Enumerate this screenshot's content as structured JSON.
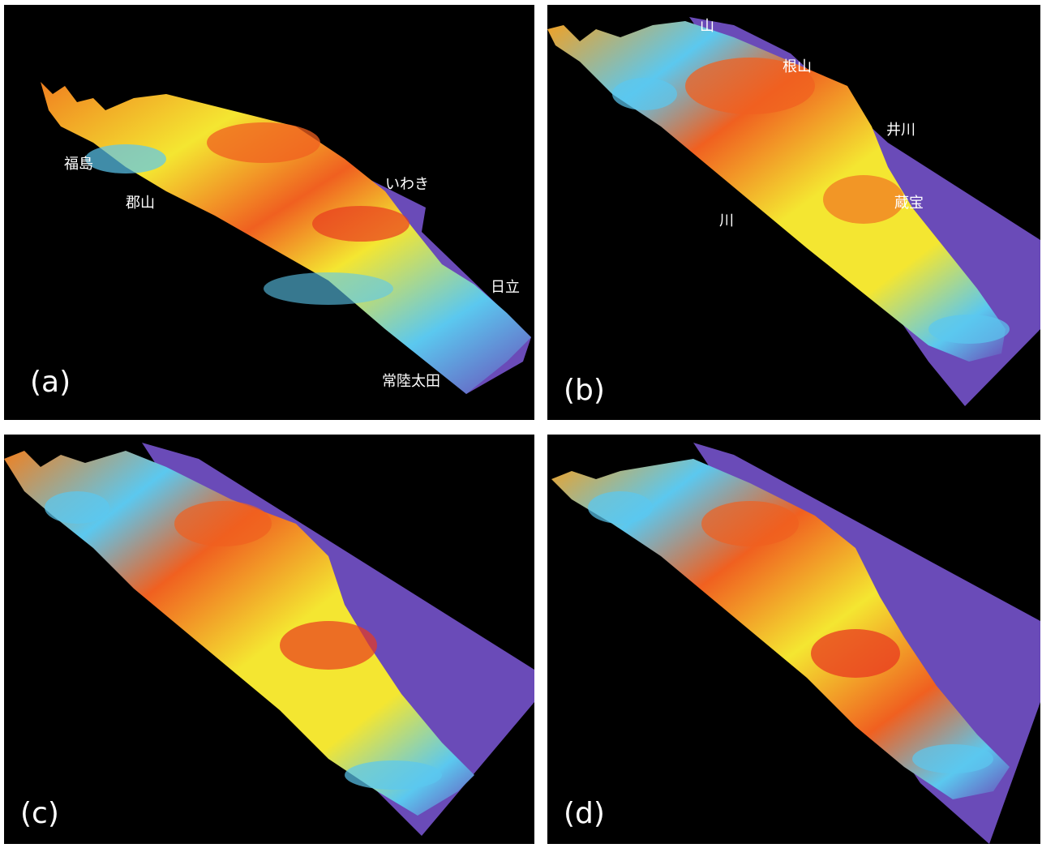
{
  "panels": {
    "a": {
      "label": "(a)",
      "places": [
        "福島",
        "郡山",
        "いわき",
        "日立",
        "常陸太田"
      ]
    },
    "b": {
      "label": "(b)",
      "places": [
        "山",
        "根山",
        "井川",
        "蔵宝",
        "川"
      ]
    },
    "c": {
      "label": "(c)"
    },
    "d": {
      "label": "(d)"
    }
  },
  "colors": {
    "background": "#000000",
    "sea_plane": "#6a4bb8",
    "low": "#5bc8ef",
    "mid": "#f4e631",
    "high": "#f06020",
    "peak": "#e83a20"
  }
}
